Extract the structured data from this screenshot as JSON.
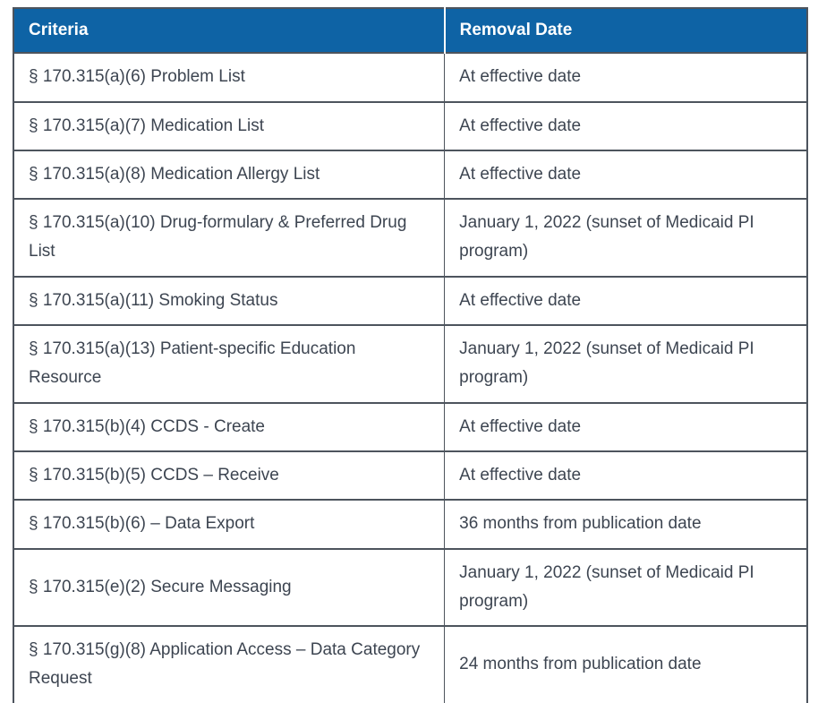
{
  "table": {
    "columns": [
      {
        "label": "Criteria"
      },
      {
        "label": "Removal Date"
      }
    ],
    "rows": [
      {
        "criteria": "§ 170.315(a)(6) Problem List",
        "removal_date": "At effective date"
      },
      {
        "criteria": "§ 170.315(a)(7) Medication List",
        "removal_date": "At effective date"
      },
      {
        "criteria": "§ 170.315(a)(8) Medication Allergy List",
        "removal_date": "At effective date"
      },
      {
        "criteria": "§ 170.315(a)(10) Drug-formulary & Preferred Drug List",
        "removal_date": "January 1, 2022 (sunset of Medicaid PI program)"
      },
      {
        "criteria": "§ 170.315(a)(11) Smoking Status",
        "removal_date": "At effective date"
      },
      {
        "criteria": "§ 170.315(a)(13) Patient-specific Education Resource",
        "removal_date": "January 1, 2022 (sunset of Medicaid PI program)"
      },
      {
        "criteria": "§ 170.315(b)(4) CCDS - Create",
        "removal_date": "At effective date"
      },
      {
        "criteria": "§ 170.315(b)(5) CCDS – Receive",
        "removal_date": "At effective date"
      },
      {
        "criteria": "§ 170.315(b)(6) – Data Export",
        "removal_date": "36 months from publication date"
      },
      {
        "criteria": "§ 170.315(e)(2) Secure Messaging",
        "removal_date": "January 1, 2022 (sunset of Medicaid PI program)"
      },
      {
        "criteria": "§ 170.315(g)(8) Application Access – Data Category Request",
        "removal_date": "24 months from publication date"
      }
    ]
  },
  "colors": {
    "header_background": "#0e63a5",
    "header_text": "#ffffff",
    "border": "#4d545d",
    "body_text": "#3d4551",
    "page_background": "#ffffff",
    "header_divider": "#ffffff"
  }
}
